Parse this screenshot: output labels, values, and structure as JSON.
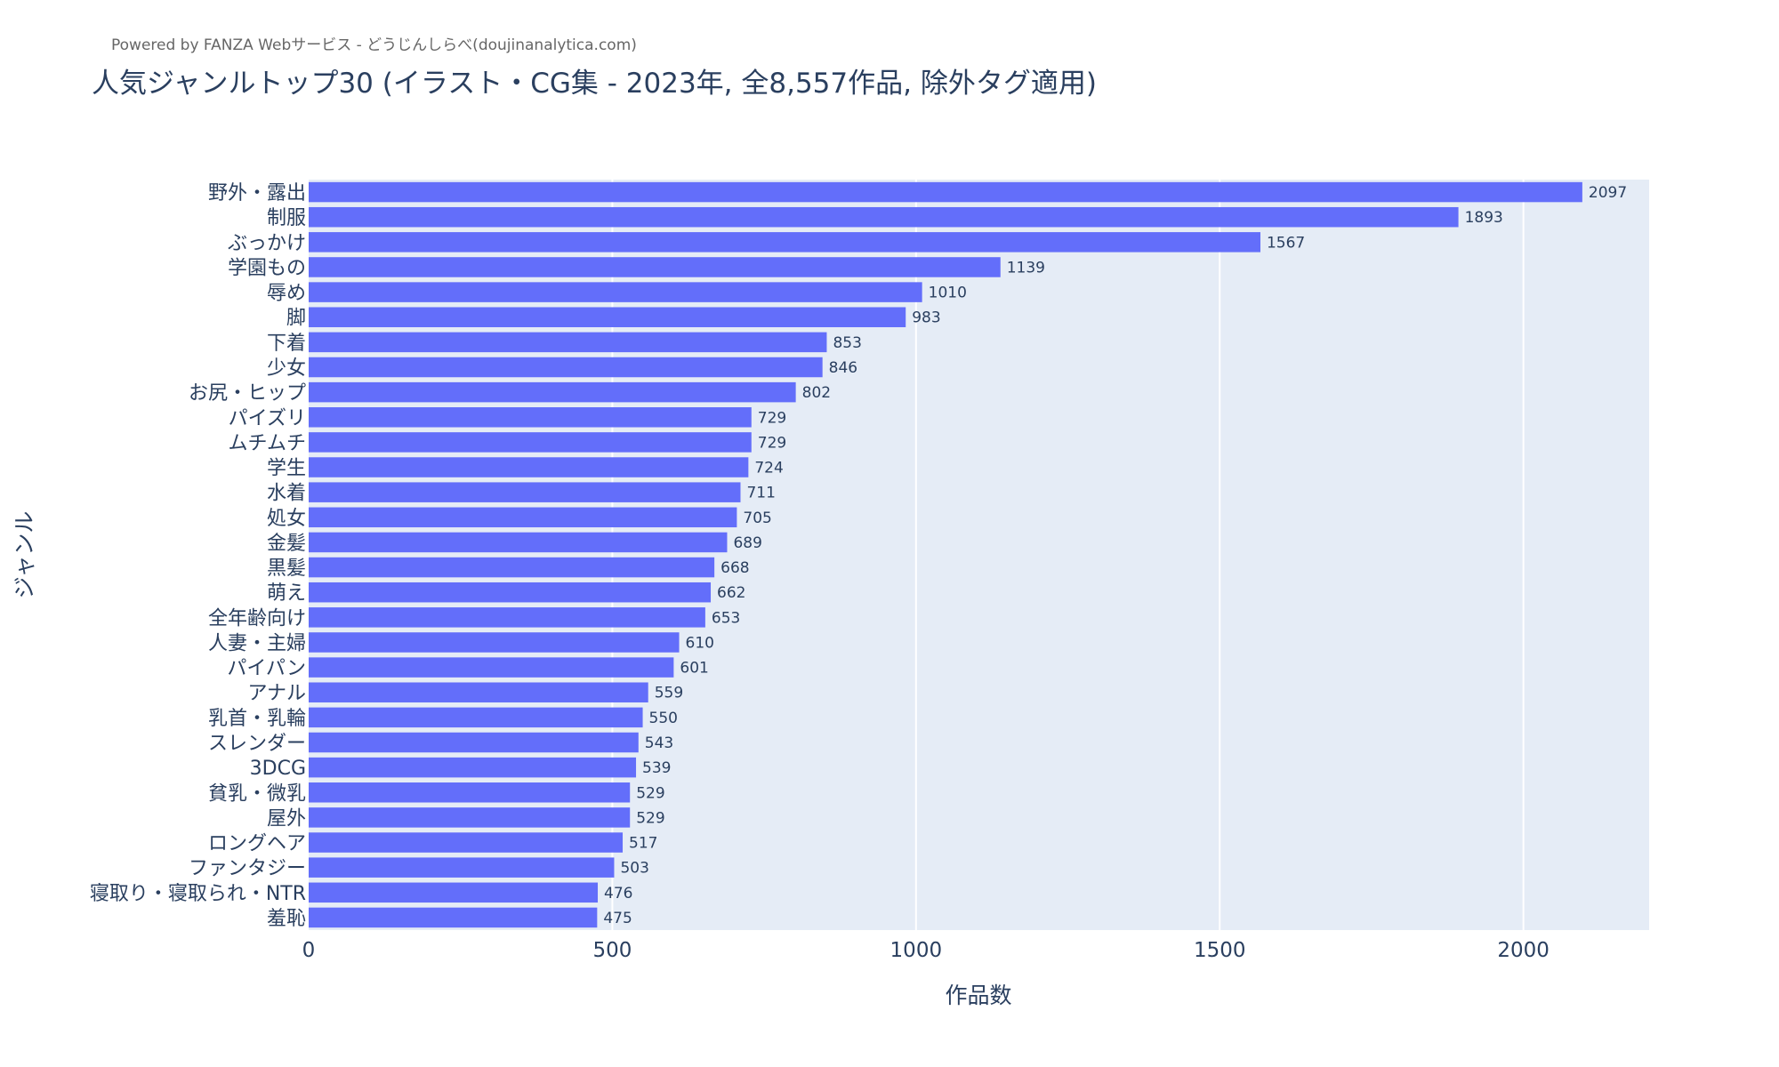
{
  "credit": "Powered by FANZA Webサービス - どうじんしらべ(doujinanalytica.com)",
  "chart_data": {
    "type": "bar",
    "orientation": "horizontal",
    "title": "人気ジャンルトップ30 (イラスト・CG集 - 2023年, 全8,557作品, 除外タグ適用)",
    "xlabel": "作品数",
    "ylabel": "ジャンル",
    "xlim": [
      0,
      2207
    ],
    "xticks": [
      0,
      500,
      1000,
      1500,
      2000
    ],
    "grid": true,
    "bar_color": "#636efa",
    "plot_bg": "#e5ecf6",
    "categories": [
      "野外・露出",
      "制服",
      "ぶっかけ",
      "学園もの",
      "辱め",
      "脚",
      "下着",
      "少女",
      "お尻・ヒップ",
      "パイズリ",
      "ムチムチ",
      "学生",
      "水着",
      "処女",
      "金髪",
      "黒髪",
      "萌え",
      "全年齢向け",
      "人妻・主婦",
      "パイパン",
      "アナル",
      "乳首・乳輪",
      "スレンダー",
      "3DCG",
      "貧乳・微乳",
      "屋外",
      "ロングヘア",
      "ファンタジー",
      "寝取り・寝取られ・NTR",
      "羞恥"
    ],
    "values": [
      2097,
      1893,
      1567,
      1139,
      1010,
      983,
      853,
      846,
      802,
      729,
      729,
      724,
      711,
      705,
      689,
      668,
      662,
      653,
      610,
      601,
      559,
      550,
      543,
      539,
      529,
      529,
      517,
      503,
      476,
      475
    ]
  }
}
